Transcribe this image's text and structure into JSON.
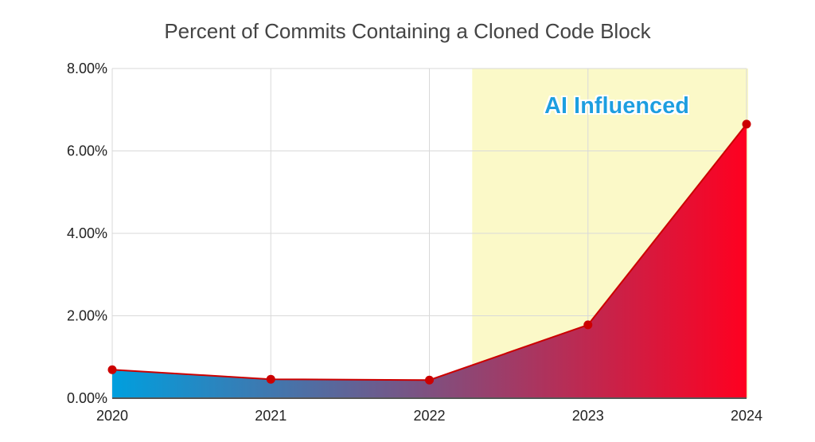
{
  "chart_data": {
    "type": "area",
    "title": "Percent of Commits Containing a Cloned Code Block",
    "xlabel": "",
    "ylabel": "",
    "x": [
      2020,
      2021,
      2022,
      2023,
      2024
    ],
    "x_tick_labels": [
      "2020",
      "2021",
      "2022",
      "2023",
      "2024"
    ],
    "values": [
      0.69,
      0.46,
      0.44,
      1.78,
      6.65
    ],
    "value_unit": "percent",
    "ylim": [
      0,
      8
    ],
    "y_ticks": [
      0,
      2,
      4,
      6,
      8
    ],
    "y_tick_labels": [
      "0.00%",
      "2.00%",
      "4.00%",
      "6.00%",
      "8.00%"
    ],
    "grid": true,
    "annotation": {
      "text": "AI Influenced",
      "x_start": 2022.27,
      "x_end": 2024
    },
    "colors": {
      "fill_start": "#009fde",
      "fill_end": "#ff0020",
      "line": "#cc0000",
      "highlight": "#fbf9c8",
      "annotation_text": "#1a9fe0",
      "grid": "#d9d9d9"
    }
  }
}
